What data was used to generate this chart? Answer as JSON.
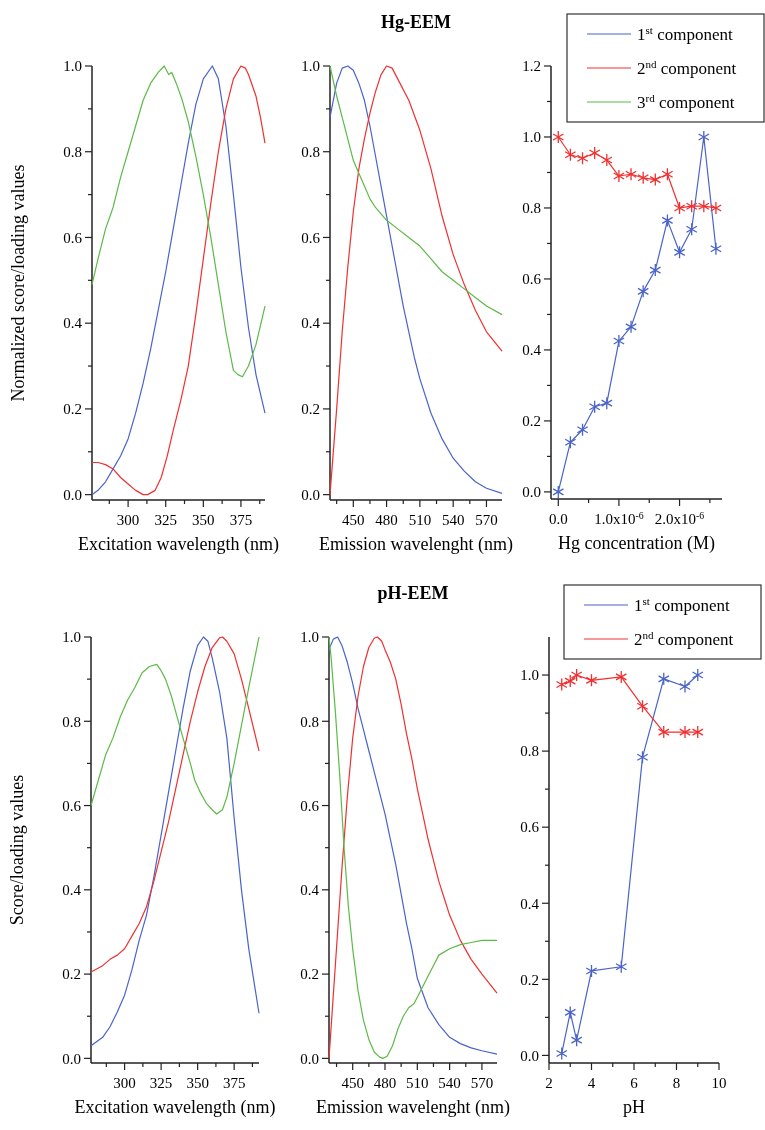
{
  "chart_data": [
    {
      "type": "line",
      "xlabel": "Excitation wavelength (nm)",
      "ylabel": "Normalized score/loading values",
      "xlim": [
        276,
        391
      ],
      "xticks": [
        {
          "value": 287.5,
          "label": null
        },
        300,
        {
          "value": 312.5,
          "label": null
        },
        325,
        {
          "value": 337.5,
          "label": null
        },
        350,
        {
          "value": 362.5,
          "label": null
        },
        375,
        {
          "value": 387.5,
          "label": null
        }
      ],
      "ylim": [
        -0.0125,
        1.0
      ],
      "yticks": [
        {
          "value": 0,
          "label": "0.0"
        },
        {
          "value": 0.1,
          "label": null
        },
        {
          "value": 0.2,
          "label": "0.2"
        },
        {
          "value": 0.3,
          "label": null
        },
        {
          "value": 0.4,
          "label": "0.4"
        },
        {
          "value": 0.5,
          "label": null
        },
        {
          "value": 0.6,
          "label": "0.6"
        },
        {
          "value": 0.7,
          "label": null
        },
        {
          "value": 0.8,
          "label": "0.8"
        },
        {
          "value": 0.9,
          "label": null
        },
        {
          "value": 1.0,
          "label": "1.0"
        }
      ],
      "series": [
        {
          "color": "#4a63c8",
          "x": [
            276,
            280,
            285,
            290,
            295,
            300,
            305,
            310,
            315,
            320,
            325,
            330,
            335,
            340,
            345,
            350,
            356,
            360,
            365,
            370,
            375,
            380,
            385,
            391
          ],
          "values": [
            0.0,
            0.01,
            0.03,
            0.06,
            0.09,
            0.13,
            0.19,
            0.26,
            0.34,
            0.43,
            0.52,
            0.62,
            0.72,
            0.82,
            0.91,
            0.97,
            1.0,
            0.97,
            0.86,
            0.7,
            0.53,
            0.39,
            0.28,
            0.19
          ]
        },
        {
          "color": "#f03030",
          "x": [
            276,
            280,
            285,
            290,
            295,
            300,
            305,
            310,
            313,
            318,
            322,
            326,
            330,
            335,
            340,
            345,
            350,
            355,
            360,
            365,
            370,
            375,
            378,
            380,
            385,
            388,
            391
          ],
          "values": [
            0.075,
            0.075,
            0.07,
            0.06,
            0.04,
            0.025,
            0.01,
            0.0,
            0.0,
            0.01,
            0.04,
            0.09,
            0.15,
            0.22,
            0.3,
            0.42,
            0.55,
            0.68,
            0.8,
            0.9,
            0.97,
            1.0,
            0.995,
            0.98,
            0.93,
            0.88,
            0.82
          ]
        },
        {
          "color": "#5cba47",
          "x": [
            276,
            280,
            285,
            290,
            295,
            300,
            305,
            310,
            315,
            320,
            324,
            327,
            329,
            332,
            336,
            340,
            345,
            350,
            355,
            360,
            365,
            370,
            373,
            376,
            380,
            385,
            391
          ],
          "values": [
            0.49,
            0.55,
            0.62,
            0.67,
            0.74,
            0.8,
            0.86,
            0.92,
            0.96,
            0.985,
            1.0,
            0.98,
            0.985,
            0.96,
            0.92,
            0.87,
            0.79,
            0.7,
            0.6,
            0.49,
            0.38,
            0.29,
            0.28,
            0.275,
            0.3,
            0.35,
            0.44
          ]
        }
      ]
    },
    {
      "type": "line",
      "title": "Hg-EEM",
      "xlabel": "Emission wavelenght (nm)",
      "xlim": [
        429,
        584
      ],
      "xticks": [
        {
          "value": 435,
          "label": null
        },
        450,
        {
          "value": 465,
          "label": null
        },
        480,
        {
          "value": 495,
          "label": null
        },
        510,
        {
          "value": 525,
          "label": null
        },
        540,
        {
          "value": 555,
          "label": null
        },
        570
      ],
      "ylim": [
        -0.0125,
        1.0
      ],
      "yticks": [
        {
          "value": 0,
          "label": "0.0"
        },
        {
          "value": 0.1,
          "label": null
        },
        {
          "value": 0.2,
          "label": "0.2"
        },
        {
          "value": 0.3,
          "label": null
        },
        {
          "value": 0.4,
          "label": "0.4"
        },
        {
          "value": 0.5,
          "label": null
        },
        {
          "value": 0.6,
          "label": "0.6"
        },
        {
          "value": 0.7,
          "label": null
        },
        {
          "value": 0.8,
          "label": "0.8"
        },
        {
          "value": 0.9,
          "label": null
        },
        {
          "value": 1.0,
          "label": "1.0"
        }
      ],
      "series": [
        {
          "color": "#4a63c8",
          "x": [
            429,
            435,
            440,
            445,
            450,
            455,
            460,
            465,
            470,
            475,
            480,
            485,
            490,
            495,
            500,
            505,
            510,
            520,
            530,
            540,
            550,
            560,
            570,
            584
          ],
          "values": [
            0.88,
            0.96,
            0.995,
            1.0,
            0.99,
            0.96,
            0.92,
            0.86,
            0.79,
            0.72,
            0.65,
            0.58,
            0.51,
            0.44,
            0.38,
            0.32,
            0.27,
            0.19,
            0.13,
            0.085,
            0.055,
            0.03,
            0.015,
            0.003
          ]
        },
        {
          "color": "#f03030",
          "x": [
            429,
            435,
            440,
            445,
            450,
            455,
            460,
            465,
            470,
            475,
            480,
            485,
            490,
            500,
            510,
            520,
            530,
            540,
            550,
            560,
            570,
            584
          ],
          "values": [
            0.0,
            0.2,
            0.38,
            0.53,
            0.66,
            0.76,
            0.83,
            0.89,
            0.94,
            0.98,
            1.0,
            0.995,
            0.97,
            0.92,
            0.85,
            0.76,
            0.65,
            0.56,
            0.49,
            0.43,
            0.38,
            0.335
          ]
        },
        {
          "color": "#5cba47",
          "x": [
            429,
            435,
            440,
            445,
            450,
            455,
            460,
            465,
            470,
            480,
            490,
            500,
            510,
            520,
            530,
            540,
            550,
            560,
            570,
            584
          ],
          "values": [
            1.0,
            0.93,
            0.88,
            0.83,
            0.78,
            0.75,
            0.72,
            0.69,
            0.67,
            0.64,
            0.62,
            0.6,
            0.58,
            0.55,
            0.52,
            0.5,
            0.48,
            0.46,
            0.44,
            0.42
          ]
        }
      ]
    },
    {
      "type": "line",
      "marker": "cross",
      "legend": "top right",
      "xlabel": "Hg concentration (M)",
      "xlim": [
        -1.2e-07,
        2.7e-06
      ],
      "xticks": [
        {
          "value": 0,
          "label": "0.0"
        },
        {
          "value": 5e-07,
          "label": null
        },
        {
          "value": 1e-06,
          "label": "1.0x10$^{-6}$"
        },
        {
          "value": 1.5e-06,
          "label": null
        },
        {
          "value": 2e-06,
          "label": "2.0x10$^{-6}$"
        },
        {
          "value": 2.5e-06,
          "label": null
        }
      ],
      "ylim": [
        -0.02,
        1.2
      ],
      "yticks": [
        {
          "value": 0,
          "label": "0.0"
        },
        {
          "value": 0.1,
          "label": null
        },
        {
          "value": 0.2,
          "label": "0.2"
        },
        {
          "value": 0.3,
          "label": null
        },
        {
          "value": 0.4,
          "label": "0.4"
        },
        {
          "value": 0.5,
          "label": null
        },
        {
          "value": 0.6,
          "label": "0.6"
        },
        {
          "value": 0.7,
          "label": null
        },
        {
          "value": 0.8,
          "label": "0.8"
        },
        {
          "value": 0.9,
          "label": null
        },
        {
          "value": 1.0,
          "label": "1.0"
        },
        {
          "value": 1.1,
          "label": null
        },
        {
          "value": 1.2,
          "label": "1.2"
        }
      ],
      "x": [
        0,
        2e-07,
        4e-07,
        6e-07,
        8e-07,
        1e-06,
        1.2e-06,
        1.4e-06,
        1.6e-06,
        1.8e-06,
        2e-06,
        2.2e-06,
        2.4e-06,
        2.6e-06
      ],
      "series": [
        {
          "name": "1$^{st}$ component",
          "color": "#4a63c8",
          "values": [
            0.0,
            0.14,
            0.175,
            0.24,
            0.25,
            0.425,
            0.465,
            0.565,
            0.625,
            0.765,
            0.675,
            0.74,
            1.0,
            0.685
          ]
        },
        {
          "name": "2$^{nd}$ component",
          "color": "#f03030",
          "values": [
            1.0,
            0.95,
            0.94,
            0.955,
            0.935,
            0.89,
            0.895,
            0.885,
            0.88,
            0.895,
            0.8,
            0.805,
            0.805,
            0.8
          ]
        },
        {
          "name": "3$^{rd}$ component",
          "color": "#5cba47",
          "values": [
            null,
            null,
            null,
            null,
            null,
            null,
            null,
            null,
            null,
            null,
            null,
            null,
            null,
            null
          ]
        }
      ]
    },
    {
      "type": "line",
      "xlabel": "Excitation wavelength (nm)",
      "ylabel": "Score/loading values",
      "xlim": [
        277,
        392
      ],
      "xticks": [
        {
          "value": 287.5,
          "label": null
        },
        300,
        {
          "value": 312.5,
          "label": null
        },
        325,
        {
          "value": 337.5,
          "label": null
        },
        350,
        {
          "value": 362.5,
          "label": null
        },
        375,
        {
          "value": 387.5,
          "label": null
        }
      ],
      "ylim": [
        -0.011,
        1.0
      ],
      "yticks": [
        {
          "value": 0,
          "label": "0.0"
        },
        {
          "value": 0.1,
          "label": null
        },
        {
          "value": 0.2,
          "label": "0.2"
        },
        {
          "value": 0.3,
          "label": null
        },
        {
          "value": 0.4,
          "label": "0.4"
        },
        {
          "value": 0.5,
          "label": null
        },
        {
          "value": 0.6,
          "label": "0.6"
        },
        {
          "value": 0.7,
          "label": null
        },
        {
          "value": 0.8,
          "label": "0.8"
        },
        {
          "value": 0.9,
          "label": null
        },
        {
          "value": 1.0,
          "label": "1.0"
        }
      ],
      "series": [
        {
          "color": "#4a63c8",
          "x": [
            277,
            285,
            290,
            295,
            300,
            305,
            310,
            315,
            320,
            325,
            330,
            335,
            340,
            345,
            350,
            354,
            357,
            360,
            365,
            370,
            375,
            380,
            385,
            392
          ],
          "values": [
            0.03,
            0.05,
            0.075,
            0.11,
            0.15,
            0.21,
            0.28,
            0.34,
            0.43,
            0.53,
            0.63,
            0.73,
            0.83,
            0.92,
            0.98,
            1.0,
            0.99,
            0.95,
            0.87,
            0.76,
            0.57,
            0.4,
            0.26,
            0.107
          ]
        },
        {
          "color": "#f03030",
          "x": [
            277,
            285,
            290,
            295,
            300,
            305,
            310,
            315,
            320,
            325,
            330,
            335,
            340,
            345,
            350,
            355,
            360,
            365,
            367,
            370,
            375,
            380,
            385,
            392
          ],
          "values": [
            0.205,
            0.22,
            0.235,
            0.245,
            0.26,
            0.29,
            0.32,
            0.36,
            0.42,
            0.49,
            0.56,
            0.64,
            0.72,
            0.8,
            0.87,
            0.93,
            0.975,
            0.998,
            1.0,
            0.99,
            0.96,
            0.9,
            0.83,
            0.73
          ]
        },
        {
          "color": "#5cba47",
          "x": [
            277,
            282,
            287,
            292,
            297,
            302,
            307,
            312,
            317,
            322,
            325,
            328,
            332,
            336,
            340,
            345,
            348,
            352,
            356,
            360,
            363,
            367,
            370,
            375,
            380,
            385,
            392
          ],
          "values": [
            0.6,
            0.66,
            0.72,
            0.76,
            0.81,
            0.85,
            0.88,
            0.915,
            0.93,
            0.935,
            0.92,
            0.9,
            0.86,
            0.81,
            0.76,
            0.7,
            0.66,
            0.63,
            0.605,
            0.59,
            0.58,
            0.59,
            0.62,
            0.7,
            0.79,
            0.88,
            1.0
          ]
        }
      ]
    },
    {
      "type": "line",
      "title": "pH-EEM",
      "xlabel": "Emission wavelenght (nm)",
      "xlim": [
        428,
        584
      ],
      "xticks": [
        {
          "value": 435,
          "label": null
        },
        450,
        {
          "value": 465,
          "label": null
        },
        480,
        {
          "value": 495,
          "label": null
        },
        510,
        {
          "value": 525,
          "label": null
        },
        540,
        {
          "value": 555,
          "label": null
        },
        570
      ],
      "ylim": [
        -0.011,
        1.0
      ],
      "yticks": [
        {
          "value": 0,
          "label": "0.0"
        },
        {
          "value": 0.1,
          "label": null
        },
        {
          "value": 0.2,
          "label": "0.2"
        },
        {
          "value": 0.3,
          "label": null
        },
        {
          "value": 0.4,
          "label": "0.4"
        },
        {
          "value": 0.5,
          "label": null
        },
        {
          "value": 0.6,
          "label": "0.6"
        },
        {
          "value": 0.7,
          "label": null
        },
        {
          "value": 0.8,
          "label": "0.8"
        },
        {
          "value": 0.9,
          "label": null
        },
        {
          "value": 1.0,
          "label": "1.0"
        }
      ],
      "series": [
        {
          "color": "#4a63c8",
          "x": [
            428,
            432,
            436,
            440,
            445,
            450,
            455,
            460,
            465,
            470,
            475,
            480,
            485,
            490,
            495,
            500,
            505,
            510,
            515,
            520,
            530,
            540,
            550,
            560,
            570,
            584
          ],
          "values": [
            0.97,
            0.995,
            1.0,
            0.98,
            0.94,
            0.89,
            0.83,
            0.78,
            0.73,
            0.68,
            0.63,
            0.58,
            0.52,
            0.46,
            0.39,
            0.32,
            0.26,
            0.19,
            0.155,
            0.12,
            0.08,
            0.05,
            0.035,
            0.025,
            0.018,
            0.01
          ]
        },
        {
          "color": "#f03030",
          "x": [
            428,
            432,
            436,
            440,
            445,
            450,
            455,
            460,
            465,
            470,
            473,
            477,
            480,
            485,
            490,
            495,
            500,
            505,
            510,
            515,
            520,
            525,
            530,
            535,
            540,
            550,
            560,
            570,
            584
          ],
          "values": [
            0.0,
            0.15,
            0.3,
            0.45,
            0.62,
            0.76,
            0.86,
            0.93,
            0.975,
            0.997,
            1.0,
            0.99,
            0.97,
            0.94,
            0.9,
            0.84,
            0.77,
            0.71,
            0.64,
            0.58,
            0.52,
            0.47,
            0.42,
            0.38,
            0.34,
            0.28,
            0.235,
            0.2,
            0.155
          ]
        },
        {
          "color": "#5cba47",
          "x": [
            428,
            430,
            434,
            438,
            442,
            446,
            450,
            455,
            460,
            465,
            470,
            475,
            478,
            482,
            487,
            492,
            497,
            502,
            507,
            513,
            521,
            530,
            540,
            550,
            560,
            570,
            584
          ],
          "values": [
            1.0,
            0.95,
            0.82,
            0.67,
            0.5,
            0.36,
            0.26,
            0.16,
            0.09,
            0.045,
            0.015,
            0.003,
            0.0,
            0.005,
            0.03,
            0.07,
            0.1,
            0.12,
            0.13,
            0.16,
            0.2,
            0.245,
            0.26,
            0.27,
            0.275,
            0.28,
            0.28
          ]
        }
      ]
    },
    {
      "type": "line",
      "marker": "cross",
      "legend": "top right",
      "xlabel": "pH",
      "xlim": [
        2,
        10
      ],
      "xticks": [
        2,
        {
          "value": 3,
          "label": null
        },
        4,
        {
          "value": 5,
          "label": null
        },
        6,
        {
          "value": 7,
          "label": null
        },
        8,
        {
          "value": 9,
          "label": null
        },
        10
      ],
      "ylim": [
        -0.02,
        1.1
      ],
      "yticks": [
        {
          "value": 0,
          "label": "0.0"
        },
        {
          "value": 0.1,
          "label": null
        },
        {
          "value": 0.2,
          "label": "0.2"
        },
        {
          "value": 0.3,
          "label": null
        },
        {
          "value": 0.4,
          "label": "0.4"
        },
        {
          "value": 0.5,
          "label": null
        },
        {
          "value": 0.6,
          "label": "0.6"
        },
        {
          "value": 0.7,
          "label": null
        },
        {
          "value": 0.8,
          "label": "0.8"
        },
        {
          "value": 0.9,
          "label": null
        },
        {
          "value": 1.0,
          "label": "1.0"
        }
      ],
      "x": [
        2.6,
        3.0,
        3.3,
        4.0,
        5.4,
        6.4,
        7.4,
        8.4,
        9.0
      ],
      "series": [
        {
          "name": "1$^{st}$ component",
          "color": "#4a63c8",
          "values": [
            0.005,
            0.113,
            0.04,
            0.222,
            0.233,
            0.784,
            0.99,
            0.97,
            1.0
          ]
        },
        {
          "name": "2$^{nd}$ component",
          "color": "#f03030",
          "values": [
            0.975,
            0.984,
            1.0,
            0.986,
            0.995,
            0.918,
            0.85,
            0.85,
            0.85
          ]
        }
      ]
    }
  ]
}
